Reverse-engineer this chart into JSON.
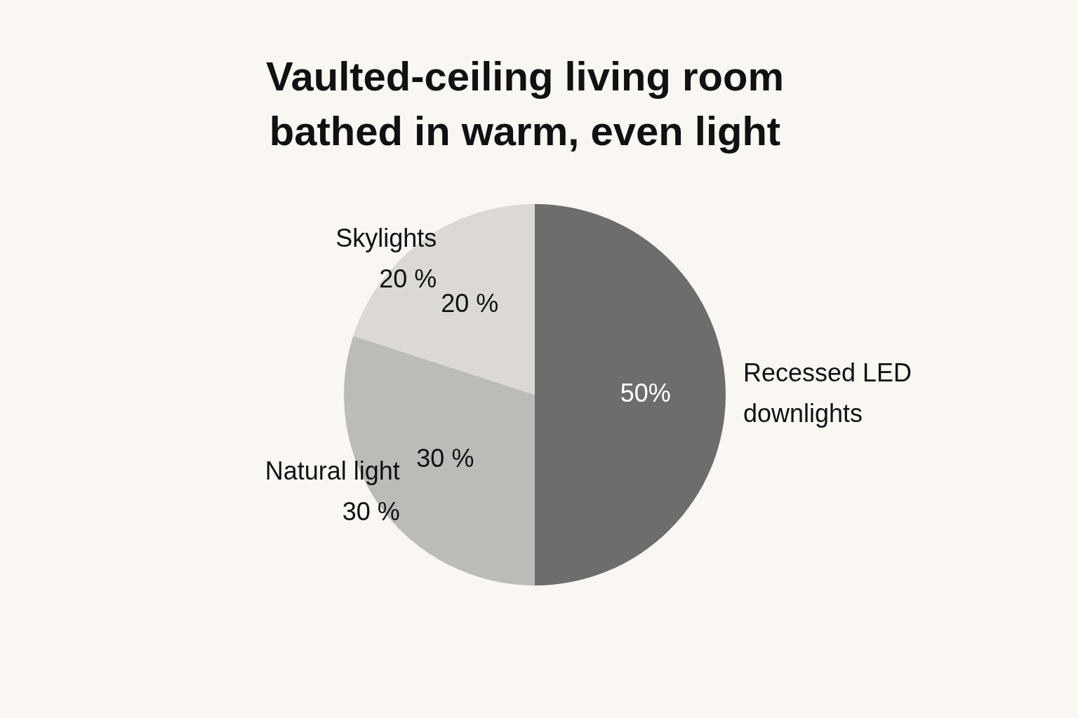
{
  "chart_data": {
    "type": "pie",
    "title": "Vaulted-ceiling living room bathed in warm, even light",
    "categories": [
      "Recessed LED downlights",
      "Natural light",
      "Skylights"
    ],
    "values": [
      50,
      30,
      20
    ],
    "colors": [
      "#6f6d6b",
      "#bdbbb7",
      "#dcd9d5"
    ],
    "value_labels": [
      "50%",
      "30 %",
      "20 %"
    ],
    "annotations": [
      {
        "text": "30 %",
        "x": "Natural light"
      },
      {
        "text": "20 %",
        "x": "Skylights"
      }
    ],
    "legend": false
  }
}
